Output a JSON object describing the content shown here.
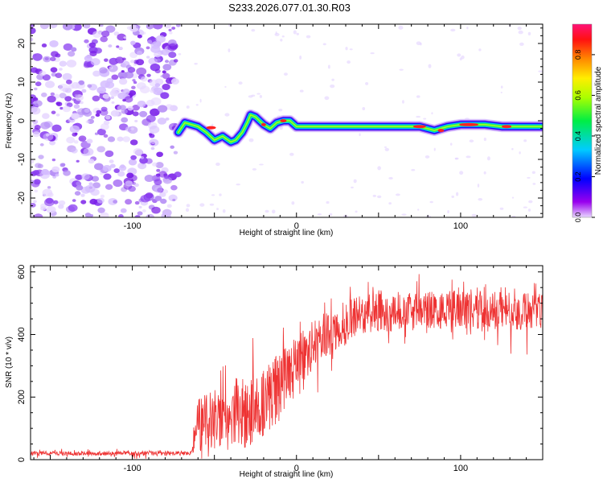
{
  "title": "S233.2026.077.01.30.R03",
  "chart_data": [
    {
      "type": "heatmap",
      "xlabel": "Height of straight line (km)",
      "ylabel": "Frequency (Hz)",
      "xlim": [
        -162,
        150
      ],
      "ylim": [
        -25,
        25
      ],
      "xticks": [
        -100,
        0,
        100
      ],
      "yticks": [
        -20,
        -10,
        0,
        10,
        20
      ],
      "colorbar": {
        "label": "Normalized spectral amplitude",
        "range": [
          0,
          0.95
        ],
        "ticks": [
          0.0,
          0.2,
          0.4,
          0.6,
          0.8
        ]
      },
      "noise_region_x": [
        -162,
        -72
      ],
      "ridge": [
        {
          "x": -72,
          "y": -3
        },
        {
          "x": -68,
          "y": -0.5
        },
        {
          "x": -60,
          "y": -1.5
        },
        {
          "x": -55,
          "y": -3
        },
        {
          "x": -50,
          "y": -5
        },
        {
          "x": -45,
          "y": -4
        },
        {
          "x": -40,
          "y": -5.5
        },
        {
          "x": -37,
          "y": -5
        },
        {
          "x": -33,
          "y": -3
        },
        {
          "x": -30,
          "y": -0.5
        },
        {
          "x": -28,
          "y": 1.5
        },
        {
          "x": -25,
          "y": 1
        },
        {
          "x": -20,
          "y": -1
        },
        {
          "x": -16,
          "y": -2
        },
        {
          "x": -12,
          "y": -0.5
        },
        {
          "x": -8,
          "y": 0
        },
        {
          "x": -4,
          "y": 0
        },
        {
          "x": 0,
          "y": -1.5
        },
        {
          "x": 20,
          "y": -1.5
        },
        {
          "x": 40,
          "y": -1.5
        },
        {
          "x": 60,
          "y": -1.5
        },
        {
          "x": 75,
          "y": -1.5
        },
        {
          "x": 84,
          "y": -2.5
        },
        {
          "x": 92,
          "y": -1.5
        },
        {
          "x": 100,
          "y": -1
        },
        {
          "x": 115,
          "y": -1
        },
        {
          "x": 125,
          "y": -1.5
        },
        {
          "x": 150,
          "y": -1.5
        }
      ]
    },
    {
      "type": "line",
      "series": [
        {
          "name": "SNR",
          "color": "#ee3333"
        }
      ],
      "xlabel": "Height of straight line (km)",
      "ylabel": "SNR (10 * v/v)",
      "xlim": [
        -162,
        150
      ],
      "ylim": [
        0,
        620
      ],
      "xticks": [
        -100,
        0,
        100
      ],
      "yticks": [
        0,
        200,
        400,
        600
      ],
      "envelope": [
        {
          "x": -162,
          "base": 20,
          "amp": 12
        },
        {
          "x": -64,
          "base": 20,
          "amp": 12
        },
        {
          "x": -60,
          "base": 110,
          "amp": 140
        },
        {
          "x": -40,
          "base": 150,
          "amp": 200
        },
        {
          "x": -30,
          "base": 140,
          "amp": 180
        },
        {
          "x": -10,
          "base": 230,
          "amp": 200
        },
        {
          "x": 10,
          "base": 370,
          "amp": 130
        },
        {
          "x": 40,
          "base": 470,
          "amp": 110
        },
        {
          "x": 100,
          "base": 480,
          "amp": 100
        },
        {
          "x": 150,
          "base": 470,
          "amp": 100
        }
      ]
    }
  ]
}
